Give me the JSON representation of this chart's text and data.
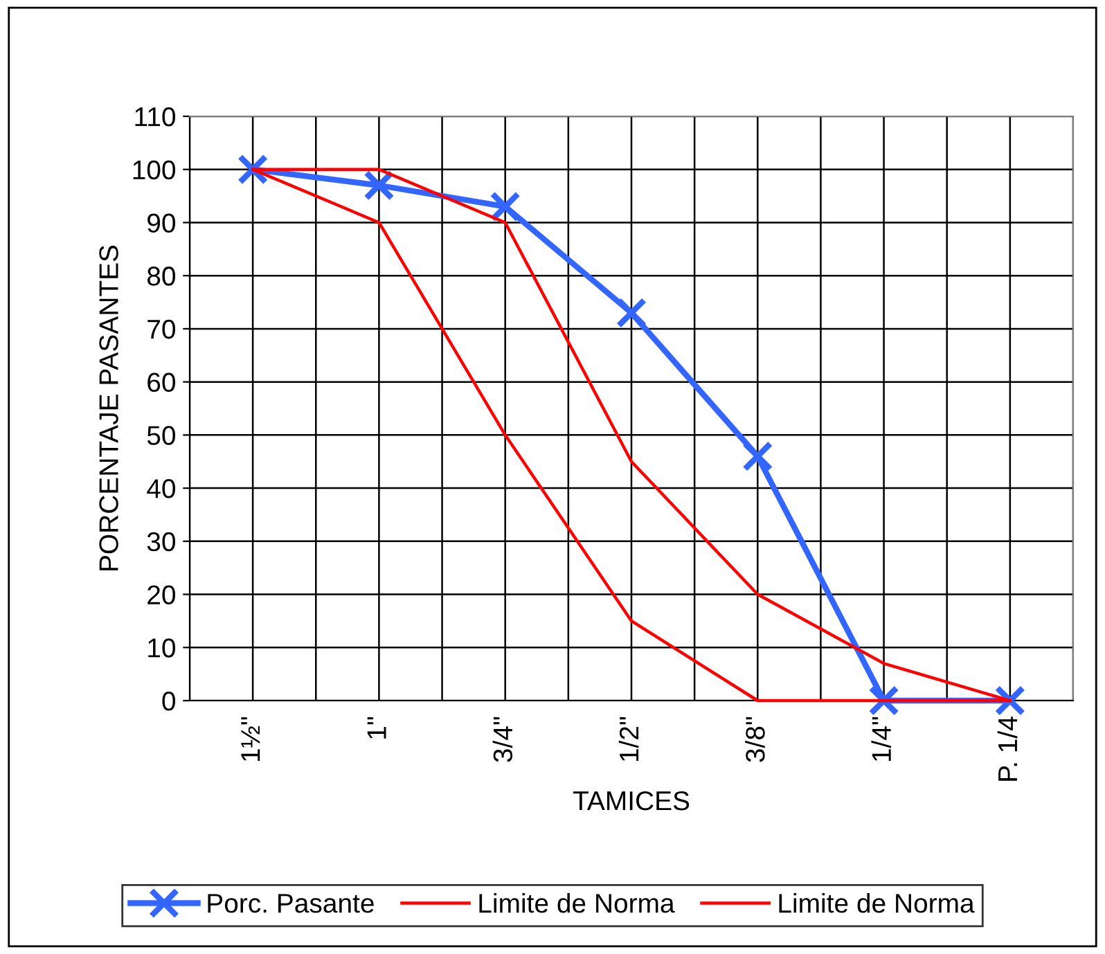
{
  "chart_data": {
    "type": "line",
    "xlabel": "TAMICES",
    "ylabel": "PORCENTAJE PASANTES",
    "categories": [
      "1½\"",
      "1\"",
      "3/4\"",
      "1/2\"",
      "3/8\"",
      "1/4\"",
      "P. 1/4"
    ],
    "series": [
      {
        "name": "Porc. Pasante",
        "color": "#3366ff",
        "marker": "cross",
        "values": [
          100,
          97,
          93,
          73,
          46,
          0,
          0
        ]
      },
      {
        "name": "Limite de Norma",
        "color": "#ff0000",
        "marker": "none",
        "values": [
          100,
          100,
          90,
          45,
          20,
          7,
          0
        ]
      },
      {
        "name": "Limite de Norma",
        "color": "#ff0000",
        "marker": "none",
        "values": [
          100,
          90,
          50,
          15,
          0,
          0,
          0
        ]
      }
    ],
    "ylim": [
      0,
      110
    ],
    "yticks": [
      0,
      10,
      20,
      30,
      40,
      50,
      60,
      70,
      80,
      90,
      100,
      110
    ],
    "grid": true,
    "legend": "bottom"
  }
}
